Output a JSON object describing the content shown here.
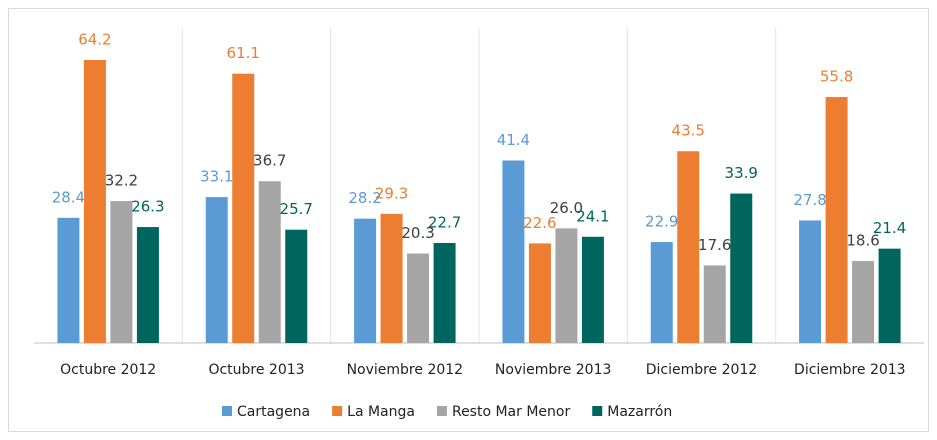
{
  "chart_data": {
    "type": "bar",
    "categories": [
      "Octubre 2012",
      "Octubre 2013",
      "Noviembre 2012",
      "Noviembre 2013",
      "Diciembre 2012",
      "Diciembre 2013"
    ],
    "series": [
      {
        "name": "Cartagena",
        "color": "#5b9bd5",
        "values": [
          28.4,
          33.1,
          28.2,
          41.4,
          22.9,
          27.8
        ]
      },
      {
        "name": "La Manga",
        "color": "#ed7d31",
        "values": [
          64.2,
          61.1,
          29.3,
          22.6,
          43.5,
          55.8
        ]
      },
      {
        "name": "Resto Mar Menor",
        "color": "#a5a5a5",
        "values": [
          32.2,
          36.7,
          20.3,
          26,
          17.6,
          18.6
        ],
        "value_labels": [
          "32.2",
          "36.7",
          "20.3",
          "26.0",
          "17.6",
          "18.6"
        ]
      },
      {
        "name": "Mazarrón",
        "color": "#00655f",
        "values": [
          26.3,
          25.7,
          22.7,
          24.1,
          33.9,
          21.4
        ]
      }
    ],
    "legend": "bottom"
  }
}
